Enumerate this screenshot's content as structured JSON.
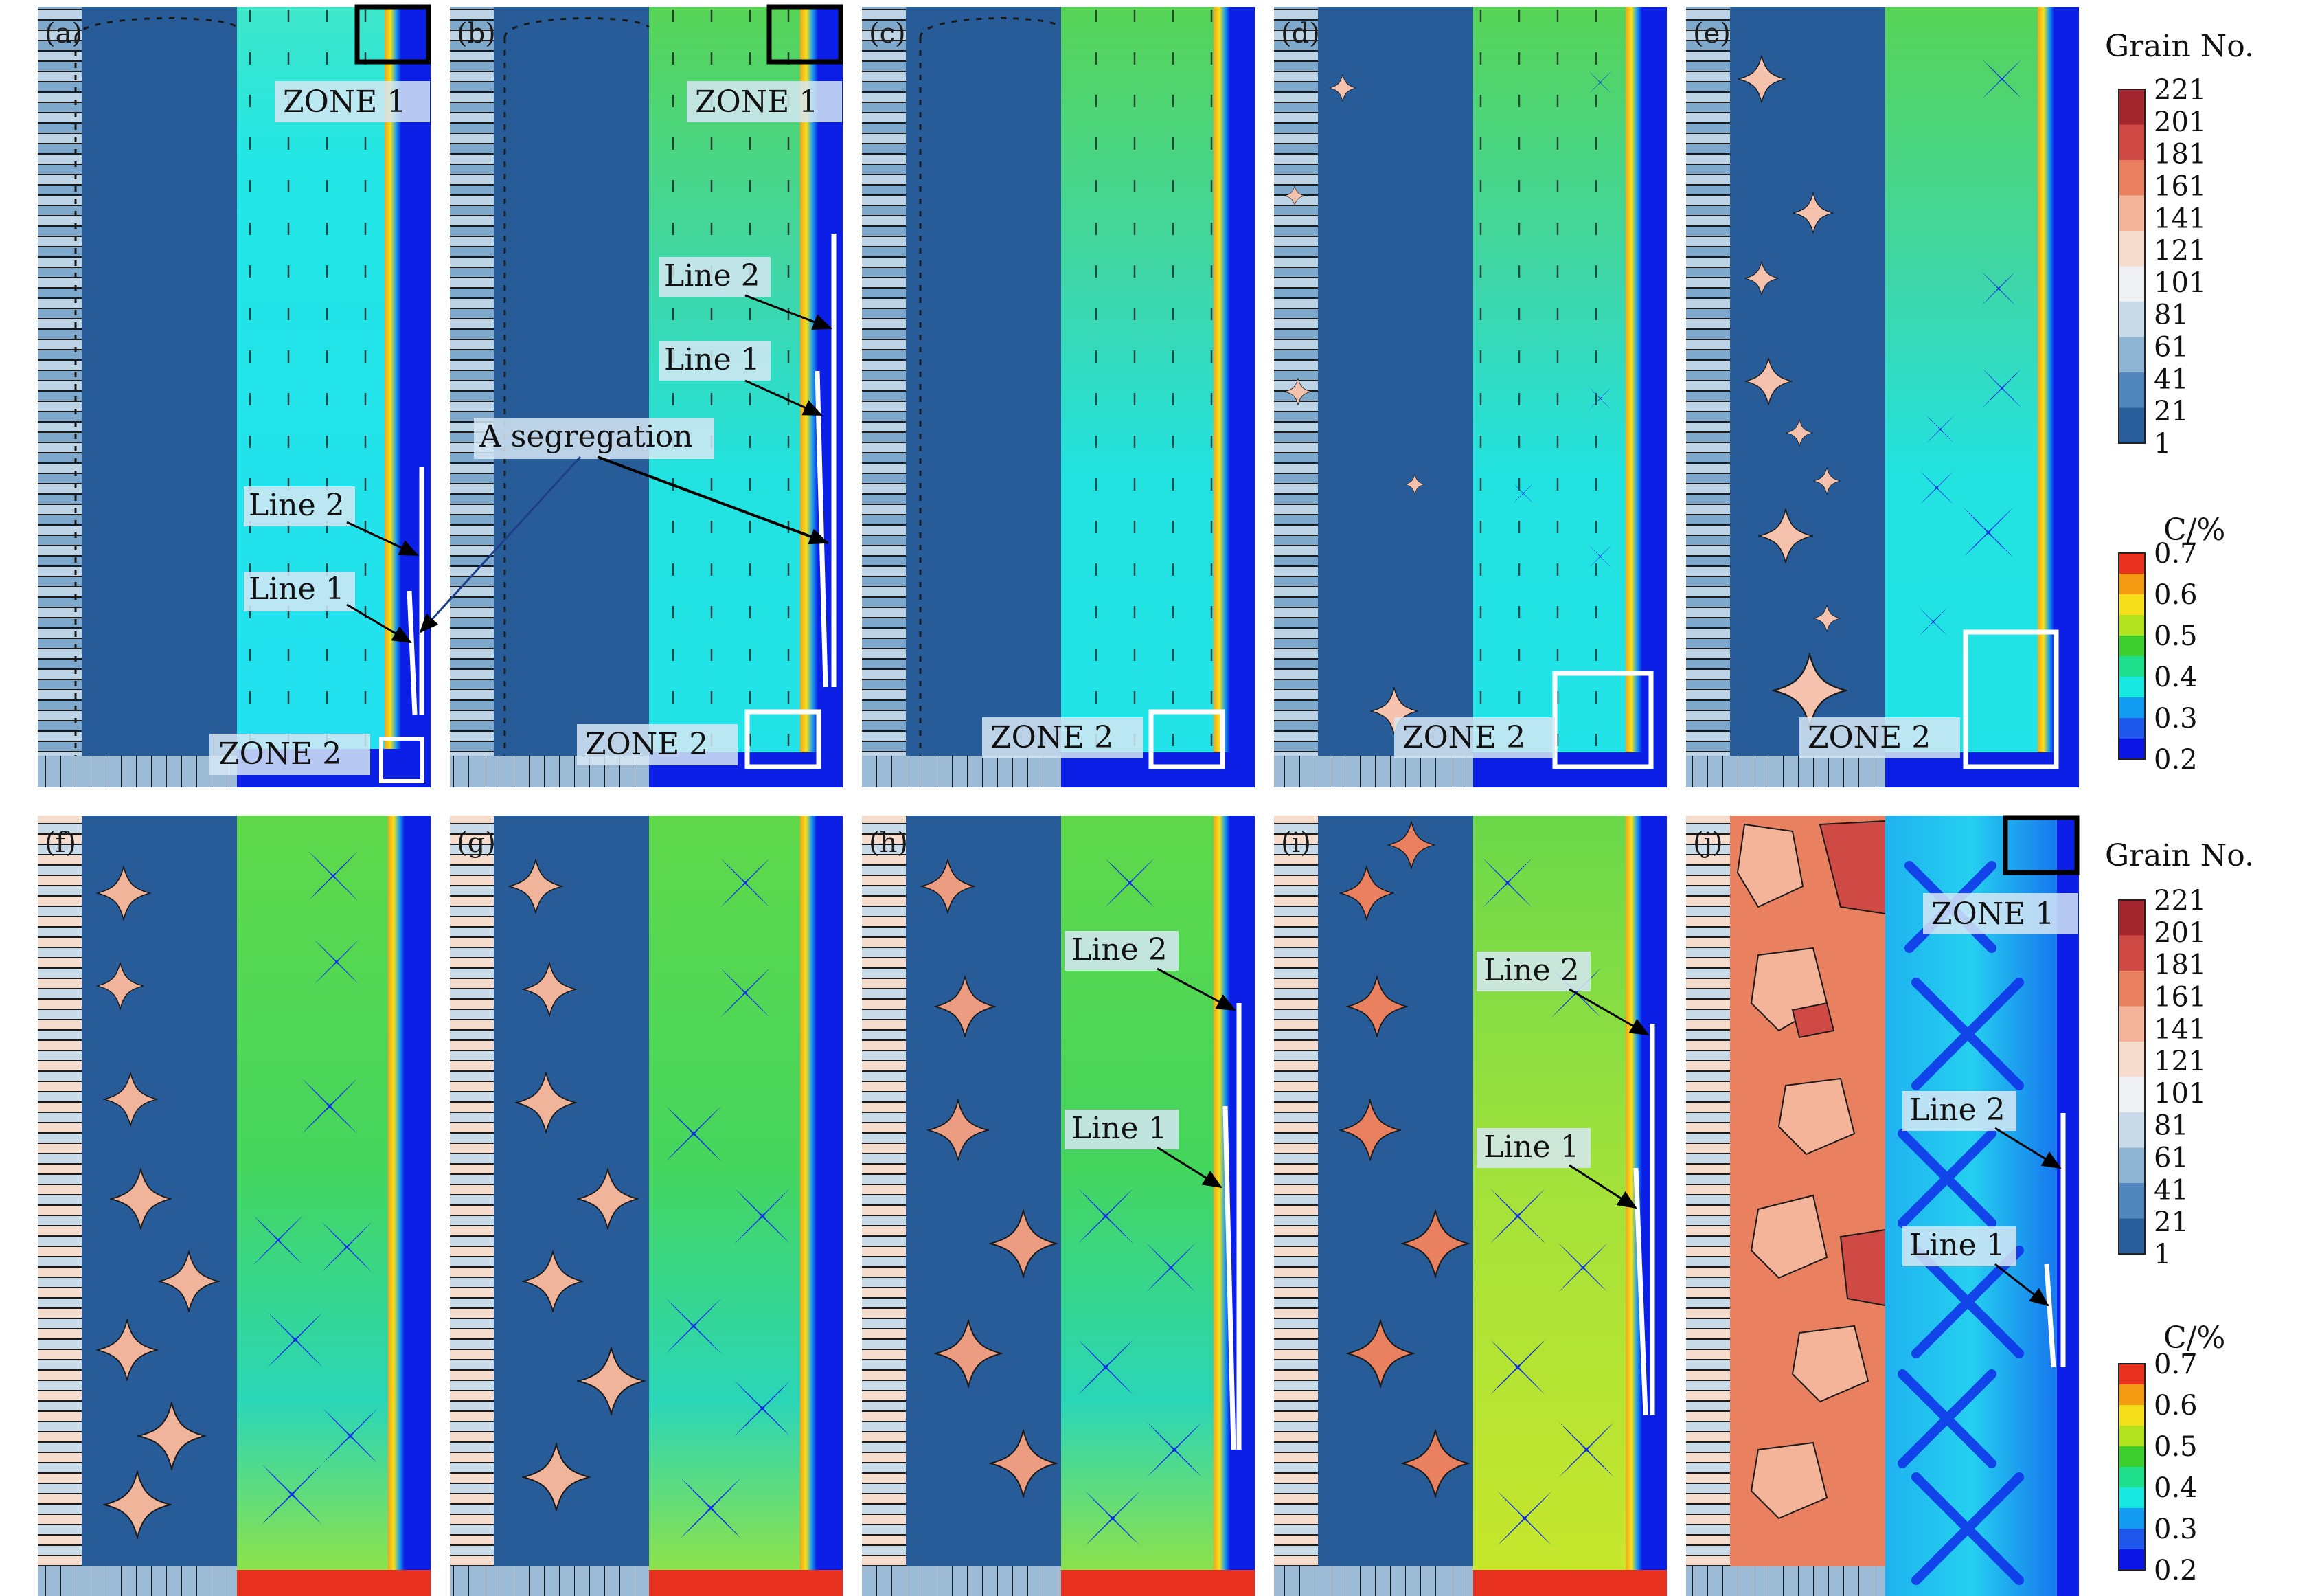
{
  "panels": [
    {
      "letter": "(a)",
      "zone1": "ZONE 1",
      "zone2": "ZONE 2",
      "line1": "Line 1",
      "line2": "Line 2",
      "segregation": "A segregation"
    },
    {
      "letter": "(b)",
      "zone1": "ZONE 1",
      "zone2": "ZONE 2",
      "line1": "Line 1",
      "line2": "Line 2"
    },
    {
      "letter": "(c)",
      "zone2": "ZONE 2"
    },
    {
      "letter": "(d)",
      "zone2": "ZONE 2"
    },
    {
      "letter": "(e)",
      "zone2": "ZONE 2"
    },
    {
      "letter": "(f)"
    },
    {
      "letter": "(g)"
    },
    {
      "letter": "(h)",
      "line1": "Line 1",
      "line2": "Line 2"
    },
    {
      "letter": "(i)",
      "line1": "Line 1",
      "line2": "Line 2"
    },
    {
      "letter": "(j)",
      "zone1": "ZONE 1",
      "line1": "Line 1",
      "line2": "Line 2"
    }
  ],
  "colorbars": {
    "grain": {
      "title": "Grain No.",
      "ticks": [
        "221",
        "201",
        "181",
        "161",
        "141",
        "121",
        "101",
        "81",
        "61",
        "41",
        "21",
        "1"
      ],
      "colors": [
        "#a3262f",
        "#d04a45",
        "#e98060",
        "#f4b49a",
        "#f5dccd",
        "#eef0f3",
        "#c9dbe9",
        "#8fb5d4",
        "#5287bd",
        "#2a5e9b"
      ]
    },
    "carbon": {
      "title": "C/%",
      "ticks": [
        "0.7",
        "0.6",
        "0.5",
        "0.4",
        "0.3",
        "0.2"
      ],
      "colors": [
        "#e8321f",
        "#f39a12",
        "#f5df1a",
        "#b3e31f",
        "#3ccf2e",
        "#1fdf8c",
        "#17e8e0",
        "#139cf2",
        "#1d57ec",
        "#0b16e6"
      ]
    }
  },
  "colors": {
    "grain_dark": "#285c99",
    "liquid_cyan": "#22e6e6",
    "liquid_green": "#4ed36e",
    "solid_blue": "#0e2ee8",
    "highlight_black": "#000000",
    "highlight_white": "#ffffff"
  }
}
